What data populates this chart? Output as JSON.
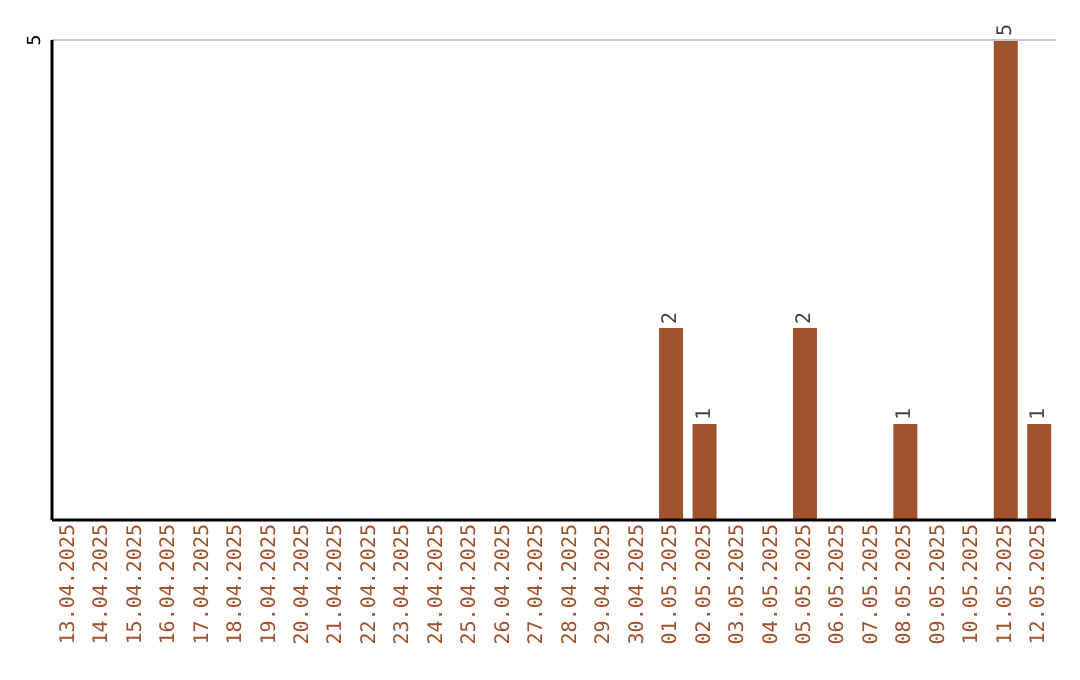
{
  "chart_data": {
    "type": "bar",
    "categories": [
      "13.04.2025",
      "14.04.2025",
      "15.04.2025",
      "16.04.2025",
      "17.04.2025",
      "18.04.2025",
      "19.04.2025",
      "20.04.2025",
      "21.04.2025",
      "22.04.2025",
      "23.04.2025",
      "24.04.2025",
      "25.04.2025",
      "26.04.2025",
      "27.04.2025",
      "28.04.2025",
      "29.04.2025",
      "30.04.2025",
      "01.05.2025",
      "02.05.2025",
      "03.05.2025",
      "04.05.2025",
      "05.05.2025",
      "06.05.2025",
      "07.05.2025",
      "08.05.2025",
      "09.05.2025",
      "10.05.2025",
      "11.05.2025",
      "12.05.2025"
    ],
    "values": [
      null,
      null,
      null,
      null,
      null,
      null,
      null,
      null,
      null,
      null,
      null,
      null,
      null,
      null,
      null,
      null,
      null,
      null,
      2,
      1,
      null,
      null,
      2,
      null,
      null,
      1,
      null,
      null,
      5,
      1
    ],
    "value_labels": [
      null,
      null,
      null,
      null,
      null,
      null,
      null,
      null,
      null,
      null,
      null,
      null,
      null,
      null,
      null,
      null,
      null,
      null,
      "2",
      "1",
      null,
      null,
      "2",
      null,
      null,
      "1",
      null,
      null,
      "5",
      "1"
    ],
    "color": "#a0522d",
    "ylim": [
      0,
      5
    ],
    "ref_lines": [
      {
        "axis": "y",
        "value": 5,
        "label": "5",
        "color": "#c8c8c8"
      }
    ]
  }
}
